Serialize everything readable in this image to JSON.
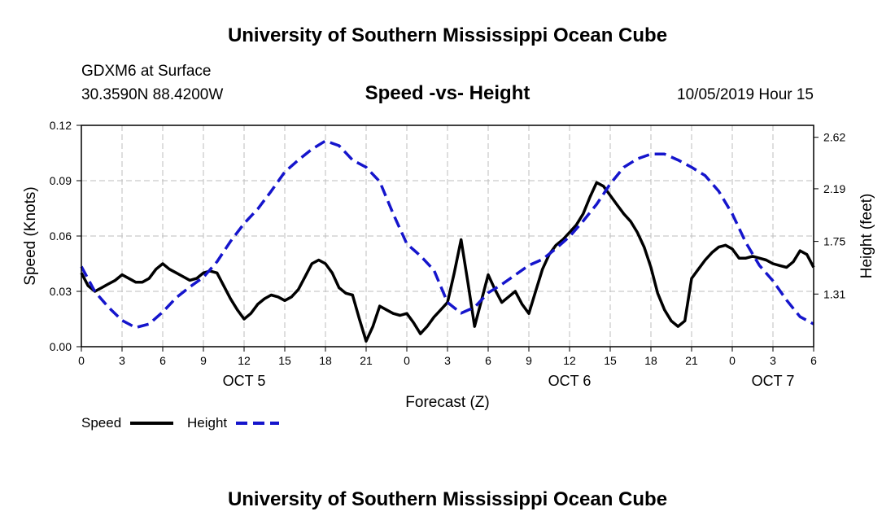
{
  "page": {
    "header_title": "University of Southern Mississippi Ocean Cube",
    "footer_title": "University of Southern Mississippi Ocean Cube",
    "station": "GDXM6 at Surface",
    "location": "30.3590N 88.4200W",
    "plot_title": "Speed -vs- Height",
    "timestamp": "10/05/2019 Hour 15"
  },
  "chart_data": {
    "type": "line",
    "title": "Speed -vs- Height",
    "xlabel": "Forecast (Z)",
    "ylabel_left": "Speed (Knots)",
    "ylabel_right": "Height (feet)",
    "x_unit": "forecast hours from 00Z Oct 5",
    "xlim": [
      0,
      54
    ],
    "ylim_left": [
      0,
      0.12
    ],
    "ylim_right": [
      0.87,
      2.72
    ],
    "grid": true,
    "x_ticks": [
      0,
      3,
      6,
      9,
      12,
      15,
      18,
      21,
      24,
      27,
      30,
      33,
      36,
      39,
      42,
      45,
      48,
      51,
      54
    ],
    "x_tick_labels": [
      "0",
      "3",
      "6",
      "9",
      "12",
      "15",
      "18",
      "21",
      "0",
      "3",
      "6",
      "9",
      "12",
      "15",
      "18",
      "21",
      "0",
      "3",
      "6"
    ],
    "date_labels": [
      {
        "x": 12,
        "label": "OCT 5"
      },
      {
        "x": 36,
        "label": "OCT 6"
      },
      {
        "x": 51,
        "label": "OCT 7"
      }
    ],
    "left_ticks": [
      0.0,
      0.03,
      0.06,
      0.09,
      0.12
    ],
    "left_tick_labels": [
      "0.00",
      "0.03",
      "0.06",
      "0.09",
      "0.12"
    ],
    "right_ticks": [
      1.31,
      1.75,
      2.19,
      2.62
    ],
    "right_tick_labels": [
      "1.31",
      "1.75",
      "2.19",
      "2.62"
    ],
    "legend_position": "bottom-left",
    "series": [
      {
        "name": "Speed",
        "axis": "left",
        "color": "#000000",
        "style": "solid",
        "x": [
          0,
          0.5,
          1,
          1.5,
          2,
          2.5,
          3,
          3.5,
          4,
          4.5,
          5,
          5.5,
          6,
          6.5,
          7,
          7.5,
          8,
          8.5,
          9,
          9.5,
          10,
          10.5,
          11,
          11.5,
          12,
          12.5,
          13,
          13.5,
          14,
          14.5,
          15,
          15.5,
          16,
          16.5,
          17,
          17.5,
          18,
          18.5,
          19,
          19.5,
          20,
          20.5,
          21,
          21.5,
          22,
          22.5,
          23,
          23.5,
          24,
          24.5,
          25,
          25.5,
          26,
          26.5,
          27,
          27.5,
          28,
          28.5,
          29,
          29.5,
          30,
          30.5,
          31,
          31.5,
          32,
          32.5,
          33,
          33.5,
          34,
          34.5,
          35,
          35.5,
          36,
          36.5,
          37,
          37.5,
          38,
          38.5,
          39,
          39.5,
          40,
          40.5,
          41,
          41.5,
          42,
          42.5,
          43,
          43.5,
          44,
          44.5,
          45,
          45.5,
          46,
          46.5,
          47,
          47.5,
          48,
          48.5,
          49,
          49.5,
          50,
          50.5,
          51,
          51.5,
          52,
          52.5,
          53,
          53.5,
          54
        ],
        "values": [
          0.04,
          0.033,
          0.03,
          0.032,
          0.034,
          0.036,
          0.039,
          0.037,
          0.035,
          0.035,
          0.037,
          0.042,
          0.045,
          0.042,
          0.04,
          0.038,
          0.036,
          0.037,
          0.04,
          0.041,
          0.04,
          0.033,
          0.026,
          0.02,
          0.015,
          0.018,
          0.023,
          0.026,
          0.028,
          0.027,
          0.025,
          0.027,
          0.031,
          0.038,
          0.045,
          0.047,
          0.045,
          0.04,
          0.032,
          0.029,
          0.028,
          0.015,
          0.003,
          0.011,
          0.022,
          0.02,
          0.018,
          0.017,
          0.018,
          0.013,
          0.007,
          0.011,
          0.016,
          0.02,
          0.024,
          0.04,
          0.058,
          0.035,
          0.011,
          0.025,
          0.039,
          0.031,
          0.024,
          0.027,
          0.03,
          0.023,
          0.018,
          0.03,
          0.042,
          0.05,
          0.055,
          0.058,
          0.062,
          0.066,
          0.072,
          0.081,
          0.089,
          0.087,
          0.082,
          0.077,
          0.072,
          0.068,
          0.062,
          0.054,
          0.043,
          0.029,
          0.02,
          0.014,
          0.011,
          0.014,
          0.037,
          0.042,
          0.047,
          0.051,
          0.054,
          0.055,
          0.053,
          0.048,
          0.048,
          0.049,
          0.048,
          0.047,
          0.045,
          0.044,
          0.043,
          0.046,
          0.052,
          0.05,
          0.043
        ]
      },
      {
        "name": "Height",
        "axis": "right",
        "color": "#1515cc",
        "style": "dashed",
        "x": [
          0,
          1,
          2,
          3,
          4,
          5,
          6,
          7,
          8,
          9,
          10,
          11,
          12,
          13,
          14,
          15,
          16,
          17,
          18,
          19,
          20,
          21,
          22,
          23,
          24,
          25,
          26,
          27,
          28,
          29,
          30,
          31,
          32,
          33,
          34,
          35,
          36,
          37,
          38,
          39,
          40,
          41,
          42,
          43,
          44,
          45,
          46,
          47,
          48,
          49,
          50,
          51,
          52,
          53,
          54
        ],
        "values": [
          1.54,
          1.33,
          1.2,
          1.09,
          1.03,
          1.06,
          1.16,
          1.28,
          1.37,
          1.45,
          1.58,
          1.75,
          1.9,
          2.02,
          2.17,
          2.33,
          2.43,
          2.52,
          2.59,
          2.55,
          2.43,
          2.37,
          2.25,
          1.98,
          1.73,
          1.63,
          1.51,
          1.24,
          1.15,
          1.2,
          1.32,
          1.39,
          1.47,
          1.55,
          1.6,
          1.69,
          1.79,
          1.92,
          2.06,
          2.23,
          2.37,
          2.44,
          2.48,
          2.48,
          2.43,
          2.37,
          2.3,
          2.17,
          1.98,
          1.74,
          1.55,
          1.42,
          1.26,
          1.12,
          1.06
        ]
      }
    ]
  }
}
